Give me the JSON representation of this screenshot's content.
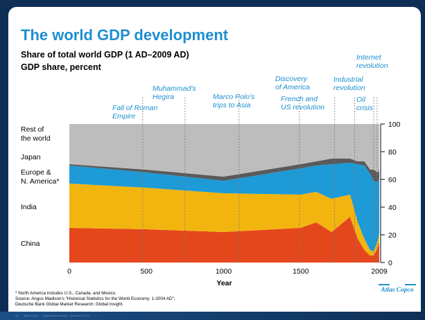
{
  "slide": {
    "title": "The world GDP development",
    "subtitle_line1": "Share of total world GDP (1 AD–2009 AD)",
    "subtitle_line2": "GDP share, percent",
    "footnote_line1": "*  North America includes U.S., Canada, and Mexico.",
    "footnote_line2": "Source:  Angus Madison’s “Historical Statistics for the World Economy: 1-2004 AD”;",
    "footnote_line3": "              Deutsche Bank Global Market Research; Global Insight.",
    "logo_text": "Atlas Copco",
    "bottom_bar_text": "Ga      Atlas Copco     Capital Markets Day   December 2009"
  },
  "colors": {
    "china": "#e5471c",
    "india": "#f2b50f",
    "europe_na": "#1e9ad6",
    "japan": "#5a5a5a",
    "rest_of_world": "#bdbdbd",
    "accent": "#1d8fcf"
  },
  "chart_data": {
    "type": "area",
    "stacked": true,
    "title": "Share of total world GDP (1 AD–2009 AD)",
    "ylabel": "GDP share, percent",
    "xlabel": "Year",
    "xlim": [
      0,
      2009
    ],
    "ylim": [
      0,
      100
    ],
    "x_ticks": [
      "0",
      "500",
      "1000",
      "1500",
      "2009"
    ],
    "y_ticks": [
      "0",
      "20",
      "40",
      "60",
      "80",
      "100"
    ],
    "x": [
      0,
      500,
      1000,
      1500,
      1600,
      1700,
      1820,
      1870,
      1913,
      1950,
      1973,
      2000,
      2009
    ],
    "series": [
      {
        "name": "China",
        "color_key": "china",
        "values": [
          25,
          24,
          22,
          25,
          29,
          22,
          33,
          17,
          9,
          5,
          5,
          11,
          15
        ]
      },
      {
        "name": "India",
        "color_key": "india",
        "values": [
          32,
          30,
          28,
          24,
          22,
          24,
          16,
          12,
          8,
          4,
          3,
          5,
          6
        ]
      },
      {
        "name": "Europe & N. America*",
        "color_key": "europe_na",
        "values": [
          13,
          11,
          9,
          19,
          19,
          25,
          23,
          42,
          53,
          55,
          51,
          42,
          40
        ]
      },
      {
        "name": "Japan",
        "color_key": "japan",
        "values": [
          1,
          2,
          3,
          3,
          3,
          4,
          3,
          2,
          3,
          3,
          8,
          7,
          6
        ]
      },
      {
        "name": "Rest of the world",
        "color_key": "rest_of_world",
        "values": [
          29,
          33,
          38,
          29,
          27,
          25,
          25,
          27,
          27,
          33,
          33,
          35,
          33
        ]
      }
    ],
    "annotations": [
      {
        "year": 476,
        "line1": "Fall of Roman",
        "line2": "Empire"
      },
      {
        "year": 750,
        "line1": "Muhammad's",
        "line2": "Hegira"
      },
      {
        "year": 1100,
        "line1": "Marco Polo's",
        "line2": "trips to Asia"
      },
      {
        "year": 1492,
        "line1": "Discovery",
        "line2": "of America"
      },
      {
        "year": 1720,
        "line1": "French and",
        "line2": "US revolution"
      },
      {
        "year": 1850,
        "line1": "Industrial",
        "line2": "revolution"
      },
      {
        "year": 1973,
        "line1": "Oil",
        "line2": "crisis"
      },
      {
        "year": 1995,
        "line1": "Internet",
        "line2": "revolution"
      }
    ],
    "legend_labels": [
      {
        "line1": "Rest of",
        "line2": "the world"
      },
      {
        "line1": "Japan",
        "line2": ""
      },
      {
        "line1": "Europe &",
        "line2": "N. America*"
      },
      {
        "line1": "India",
        "line2": ""
      },
      {
        "line1": "China",
        "line2": ""
      }
    ]
  }
}
